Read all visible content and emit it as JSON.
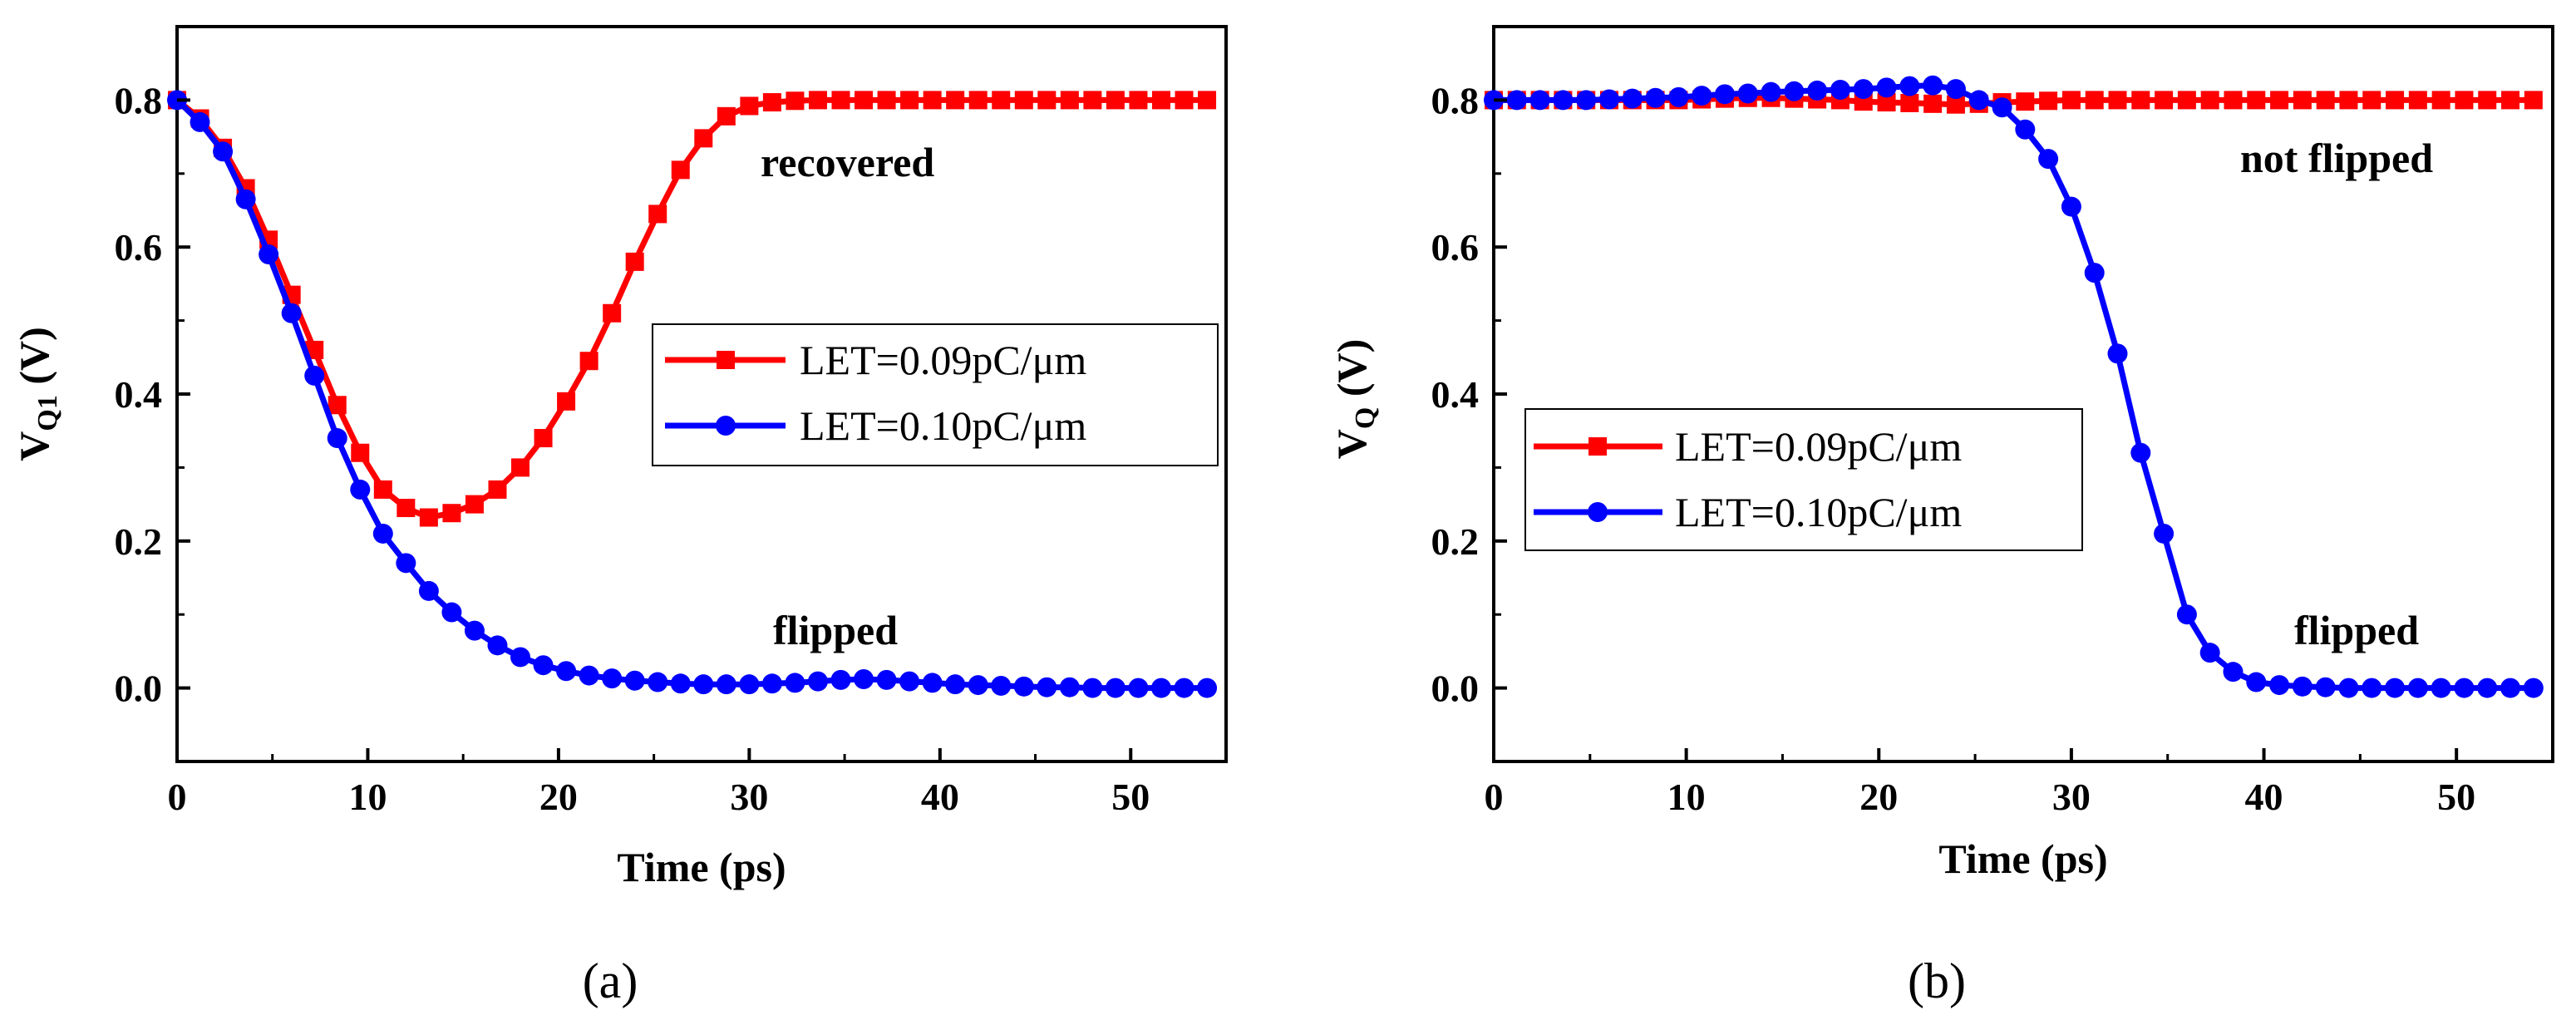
{
  "chart_data": [
    {
      "type": "line",
      "panel_label": "(a)",
      "xlabel": "Time (ps)",
      "ylabel_main": "V",
      "ylabel_sub": "Q1",
      "ylabel_unit": " (V)",
      "xlim": [
        0,
        55
      ],
      "ylim": [
        -0.1,
        0.9
      ],
      "x_ticks": [
        0,
        10,
        20,
        30,
        40,
        50
      ],
      "y_ticks": [
        0.0,
        0.2,
        0.4,
        0.6,
        0.8
      ],
      "x_tick_labels": [
        "0",
        "10",
        "20",
        "30",
        "40",
        "50"
      ],
      "y_tick_labels": [
        "0.0",
        "0.2",
        "0.4",
        "0.6",
        "0.8"
      ],
      "legend_position": "middle-right",
      "annotations": [
        {
          "text": "recovered",
          "x": 30.4,
          "y": 0.72
        },
        {
          "text": "flipped",
          "x": 31,
          "y": 0.06
        }
      ],
      "series": [
        {
          "name": "LET=0.09pC/μm",
          "color": "#ff0000",
          "marker": "square",
          "x": [
            0,
            1.2,
            2.4,
            3.6,
            4.8,
            6.0,
            7.2,
            8.4,
            9.6,
            10.8,
            12.0,
            13.2,
            14.4,
            15.6,
            16.8,
            18.0,
            19.2,
            20.4,
            21.6,
            22.8,
            24.0,
            25.2,
            26.4,
            27.6,
            28.8,
            30.0,
            31.2,
            32.4,
            33.6,
            34.8,
            36.0,
            37.2,
            38.4,
            39.6,
            40.8,
            42.0,
            43.2,
            44.4,
            45.6,
            46.8,
            48.0,
            49.2,
            50.4,
            51.6,
            52.8,
            54.0
          ],
          "y": [
            0.8,
            0.775,
            0.735,
            0.68,
            0.61,
            0.535,
            0.46,
            0.385,
            0.32,
            0.27,
            0.245,
            0.232,
            0.238,
            0.25,
            0.27,
            0.3,
            0.34,
            0.39,
            0.445,
            0.51,
            0.58,
            0.645,
            0.705,
            0.748,
            0.778,
            0.792,
            0.797,
            0.799,
            0.8,
            0.8,
            0.8,
            0.8,
            0.8,
            0.8,
            0.8,
            0.8,
            0.8,
            0.8,
            0.8,
            0.8,
            0.8,
            0.8,
            0.8,
            0.8,
            0.8,
            0.8
          ]
        },
        {
          "name": "LET=0.10pC/μm",
          "color": "#0000ff",
          "marker": "circle",
          "x": [
            0,
            1.2,
            2.4,
            3.6,
            4.8,
            6.0,
            7.2,
            8.4,
            9.6,
            10.8,
            12.0,
            13.2,
            14.4,
            15.6,
            16.8,
            18.0,
            19.2,
            20.4,
            21.6,
            22.8,
            24.0,
            25.2,
            26.4,
            27.6,
            28.8,
            30.0,
            31.2,
            32.4,
            33.6,
            34.8,
            36.0,
            37.2,
            38.4,
            39.6,
            40.8,
            42.0,
            43.2,
            44.4,
            45.6,
            46.8,
            48.0,
            49.2,
            50.4,
            51.6,
            52.8,
            54.0
          ],
          "y": [
            0.8,
            0.77,
            0.73,
            0.665,
            0.59,
            0.51,
            0.425,
            0.34,
            0.27,
            0.21,
            0.17,
            0.132,
            0.103,
            0.078,
            0.058,
            0.042,
            0.031,
            0.023,
            0.017,
            0.013,
            0.01,
            0.008,
            0.006,
            0.005,
            0.005,
            0.005,
            0.006,
            0.007,
            0.009,
            0.011,
            0.012,
            0.011,
            0.009,
            0.007,
            0.005,
            0.004,
            0.003,
            0.002,
            0.001,
            0.001,
            0.0,
            0.0,
            0.0,
            0.0,
            0.0,
            0.0
          ]
        }
      ]
    },
    {
      "type": "line",
      "panel_label": "(b)",
      "xlabel": "Time (ps)",
      "ylabel_main": "V",
      "ylabel_sub": "Q",
      "ylabel_unit": " (V)",
      "xlim": [
        0,
        55
      ],
      "ylim": [
        -0.1,
        0.9
      ],
      "x_ticks": [
        0,
        10,
        20,
        30,
        40,
        50
      ],
      "y_ticks": [
        0.0,
        0.2,
        0.4,
        0.6,
        0.8
      ],
      "x_tick_labels": [
        "0",
        "10",
        "20",
        "30",
        "40",
        "50"
      ],
      "y_tick_labels": [
        "0.0",
        "0.2",
        "0.4",
        "0.6",
        "0.8"
      ],
      "legend_position": "lower-left",
      "annotations": [
        {
          "text": "not flipped",
          "x": 39.6,
          "y": 0.72
        },
        {
          "text": "flipped",
          "x": 41.5,
          "y": 0.06
        }
      ],
      "series": [
        {
          "name": "LET=0.09pC/μm",
          "color": "#ff0000",
          "marker": "square",
          "x": [
            0,
            1.2,
            2.4,
            3.6,
            4.8,
            6.0,
            7.2,
            8.4,
            9.6,
            10.8,
            12.0,
            13.2,
            14.4,
            15.6,
            16.8,
            18.0,
            19.2,
            20.4,
            21.6,
            22.8,
            24.0,
            25.2,
            26.4,
            27.6,
            28.8,
            30.0,
            31.2,
            32.4,
            33.6,
            34.8,
            36.0,
            37.2,
            38.4,
            39.6,
            40.8,
            42.0,
            43.2,
            44.4,
            45.6,
            46.8,
            48.0,
            49.2,
            50.4,
            51.6,
            52.8,
            54.0
          ],
          "y": [
            0.8,
            0.8,
            0.8,
            0.8,
            0.8,
            0.8,
            0.8,
            0.8,
            0.8,
            0.801,
            0.802,
            0.803,
            0.803,
            0.802,
            0.801,
            0.8,
            0.798,
            0.797,
            0.796,
            0.795,
            0.794,
            0.795,
            0.797,
            0.798,
            0.799,
            0.8,
            0.8,
            0.8,
            0.8,
            0.8,
            0.8,
            0.8,
            0.8,
            0.8,
            0.8,
            0.8,
            0.8,
            0.8,
            0.8,
            0.8,
            0.8,
            0.8,
            0.8,
            0.8,
            0.8,
            0.8
          ]
        },
        {
          "name": "LET=0.10pC/μm",
          "color": "#0000ff",
          "marker": "circle",
          "x": [
            0,
            1.2,
            2.4,
            3.6,
            4.8,
            6.0,
            7.2,
            8.4,
            9.6,
            10.8,
            12.0,
            13.2,
            14.4,
            15.6,
            16.8,
            18.0,
            19.2,
            20.4,
            21.6,
            22.8,
            24.0,
            25.2,
            26.4,
            27.6,
            28.8,
            30.0,
            31.2,
            32.4,
            33.6,
            34.8,
            36.0,
            37.2,
            38.4,
            39.6,
            40.8,
            42.0,
            43.2,
            44.4,
            45.6,
            46.8,
            48.0,
            49.2,
            50.4,
            51.6,
            52.8,
            54.0
          ],
          "y": [
            0.8,
            0.8,
            0.8,
            0.8,
            0.8,
            0.801,
            0.802,
            0.803,
            0.804,
            0.806,
            0.808,
            0.809,
            0.811,
            0.812,
            0.813,
            0.814,
            0.815,
            0.817,
            0.819,
            0.82,
            0.815,
            0.8,
            0.79,
            0.76,
            0.72,
            0.655,
            0.565,
            0.455,
            0.32,
            0.21,
            0.1,
            0.048,
            0.022,
            0.008,
            0.004,
            0.002,
            0.001,
            0.0,
            0.0,
            0.0,
            0.0,
            0.0,
            0.0,
            0.0,
            0.0,
            0.0
          ]
        }
      ]
    }
  ]
}
